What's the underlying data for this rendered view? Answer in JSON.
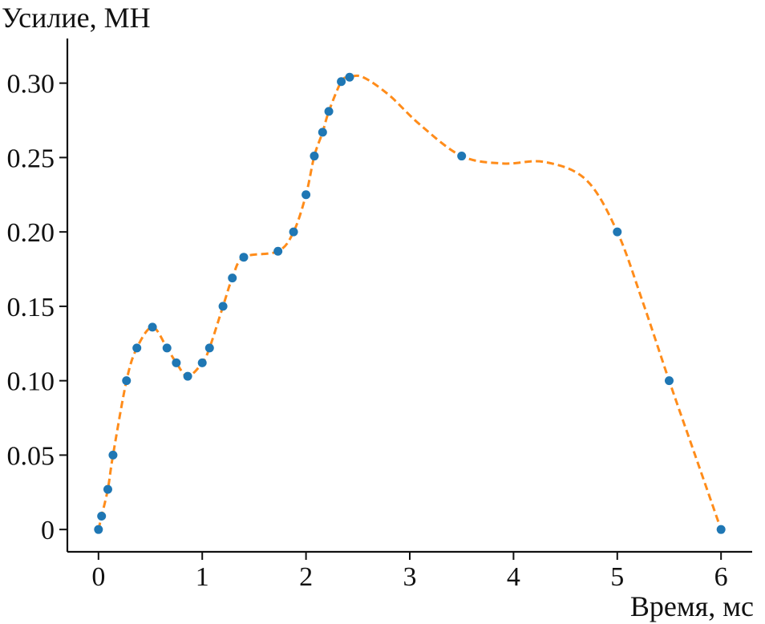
{
  "chart_data": {
    "type": "scatter",
    "ylabel": "Усилие, МН",
    "xlabel": "Время, мс",
    "xlim": [
      -0.3,
      6.3
    ],
    "ylim": [
      -0.015,
      0.33
    ],
    "x_ticks": [
      0,
      1,
      2,
      3,
      4,
      5,
      6
    ],
    "x_tick_labels": [
      "0",
      "1",
      "2",
      "3",
      "4",
      "5",
      "6"
    ],
    "y_ticks": [
      0,
      0.05,
      0.1,
      0.15,
      0.2,
      0.25,
      0.3
    ],
    "y_tick_labels": [
      "0",
      "0.05",
      "0.10",
      "0.15",
      "0.20",
      "0.25",
      "0.30"
    ],
    "grid": false,
    "legend": "none",
    "series": [
      {
        "kind": "markers",
        "color": "#1f77b4",
        "points": [
          [
            0.0,
            0.0
          ],
          [
            0.03,
            0.009
          ],
          [
            0.09,
            0.027
          ],
          [
            0.14,
            0.05
          ],
          [
            0.27,
            0.1
          ],
          [
            0.37,
            0.122
          ],
          [
            0.52,
            0.136
          ],
          [
            0.66,
            0.122
          ],
          [
            0.75,
            0.112
          ],
          [
            0.86,
            0.103
          ],
          [
            1.0,
            0.112
          ],
          [
            1.07,
            0.122
          ],
          [
            1.2,
            0.15
          ],
          [
            1.29,
            0.169
          ],
          [
            1.4,
            0.183
          ],
          [
            1.73,
            0.187
          ],
          [
            1.88,
            0.2
          ],
          [
            2.0,
            0.225
          ],
          [
            2.08,
            0.251
          ],
          [
            2.16,
            0.267
          ],
          [
            2.22,
            0.281
          ],
          [
            2.34,
            0.301
          ],
          [
            2.42,
            0.304
          ],
          [
            3.5,
            0.251
          ],
          [
            5.0,
            0.2
          ],
          [
            5.5,
            0.1
          ],
          [
            6.0,
            0.0
          ]
        ]
      },
      {
        "kind": "dashed-line",
        "color": "#ff8c1a",
        "points": [
          [
            0.0,
            0.0
          ],
          [
            0.03,
            0.009
          ],
          [
            0.09,
            0.027
          ],
          [
            0.14,
            0.05
          ],
          [
            0.27,
            0.1
          ],
          [
            0.37,
            0.122
          ],
          [
            0.52,
            0.136
          ],
          [
            0.66,
            0.122
          ],
          [
            0.75,
            0.112
          ],
          [
            0.86,
            0.103
          ],
          [
            1.0,
            0.112
          ],
          [
            1.07,
            0.122
          ],
          [
            1.2,
            0.15
          ],
          [
            1.29,
            0.169
          ],
          [
            1.4,
            0.183
          ],
          [
            1.73,
            0.187
          ],
          [
            1.88,
            0.2
          ],
          [
            2.0,
            0.225
          ],
          [
            2.08,
            0.251
          ],
          [
            2.16,
            0.267
          ],
          [
            2.22,
            0.281
          ],
          [
            2.34,
            0.301
          ],
          [
            2.42,
            0.304
          ],
          [
            2.55,
            0.304
          ],
          [
            2.8,
            0.292
          ],
          [
            3.1,
            0.272
          ],
          [
            3.5,
            0.251
          ],
          [
            3.9,
            0.246
          ],
          [
            4.3,
            0.247
          ],
          [
            4.7,
            0.235
          ],
          [
            5.0,
            0.2
          ],
          [
            5.25,
            0.152
          ],
          [
            5.5,
            0.1
          ],
          [
            5.75,
            0.05
          ],
          [
            6.0,
            0.0
          ]
        ]
      }
    ]
  }
}
